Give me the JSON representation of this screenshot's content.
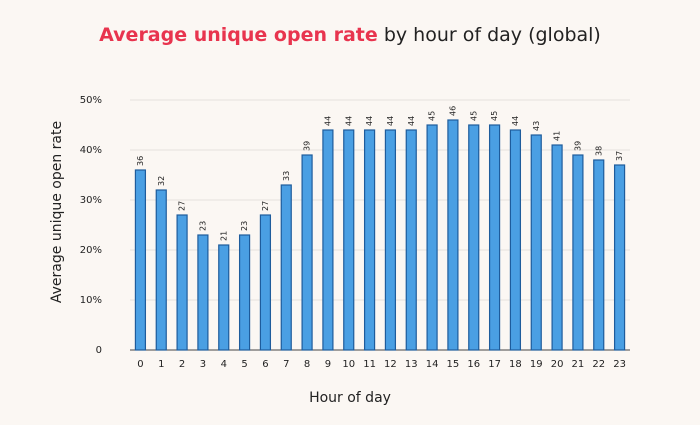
{
  "chart_data": {
    "type": "bar",
    "title": {
      "highlight": "Average unique open rate",
      "rest": "by hour of day (global)"
    },
    "title_highlight_color": "#e8344e",
    "x_label": "Hour of day",
    "y_label": "Average unique open rate",
    "categories": [
      "0",
      "1",
      "2",
      "3",
      "4",
      "5",
      "6",
      "7",
      "8",
      "9",
      "10",
      "11",
      "12",
      "13",
      "14",
      "15",
      "16",
      "17",
      "18",
      "19",
      "20",
      "21",
      "22",
      "23"
    ],
    "values": [
      36,
      32,
      27,
      23,
      21,
      23,
      27,
      33,
      39,
      44,
      44,
      44,
      44,
      44,
      45,
      46,
      45,
      45,
      44,
      43,
      41,
      39,
      38,
      37
    ],
    "color": "#4a9fe3",
    "ylim": [
      0,
      50
    ],
    "yticks": [
      0,
      {
        "value": 10,
        "label": "10%"
      },
      {
        "value": 20,
        "label": "20%"
      },
      {
        "value": 30,
        "label": "30%"
      },
      {
        "value": 40,
        "label": "40%"
      },
      {
        "value": 50,
        "label": "50%"
      }
    ],
    "grid": true
  }
}
